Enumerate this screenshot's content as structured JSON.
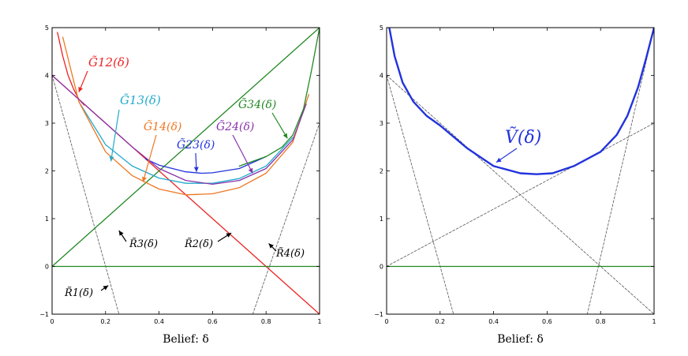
{
  "chart_data": [
    {
      "type": "line",
      "xlabel": "Belief: δ",
      "ylabel": "",
      "xlim": [
        0,
        1
      ],
      "ylim": [
        -1,
        5
      ],
      "x_ticks": [
        "0",
        "0.2",
        "0.4",
        "0.6",
        "0.8",
        "1"
      ],
      "y_ticks": [
        "−1",
        "0",
        "1",
        "2",
        "3",
        "4",
        "5"
      ],
      "grid": false,
      "series": [
        {
          "name": "R̃1(δ)",
          "color": "#555555",
          "style": "dashed",
          "x": [
            0.0,
            0.25
          ],
          "y": [
            4.0,
            -1.0
          ]
        },
        {
          "name": "R̃2(δ)",
          "color": "#ee2222",
          "style": "solid",
          "x": [
            0.0,
            1.0
          ],
          "y": [
            4.0,
            -1.0
          ]
        },
        {
          "name": "R̃3(δ)",
          "color": "#228822",
          "style": "solid",
          "x": [
            0.0,
            1.0
          ],
          "y": [
            0.0,
            5.0
          ]
        },
        {
          "name": "R̃4(δ)",
          "color": "#555555",
          "style": "dashed",
          "x": [
            0.75,
            1.0
          ],
          "y": [
            -1.0,
            3.0
          ]
        },
        {
          "name": "",
          "color": "#228822",
          "style": "solid",
          "x": [
            0.0,
            1.0
          ],
          "y": [
            0.0,
            0.0
          ]
        },
        {
          "name": "G̃12(δ)",
          "color": "#ee2222",
          "x": [
            0.02,
            0.04,
            0.06,
            0.08,
            0.1,
            0.12
          ],
          "y": [
            4.9,
            4.4,
            4.0,
            3.72,
            3.5,
            3.38
          ]
        },
        {
          "name": "G̃13(δ)",
          "color": "#22aacc",
          "x": [
            0.1,
            0.2,
            0.3,
            0.4,
            0.5,
            0.6,
            0.7,
            0.8,
            0.9
          ],
          "y": [
            3.45,
            2.55,
            2.1,
            1.85,
            1.74,
            1.74,
            1.84,
            2.1,
            2.7
          ]
        },
        {
          "name": "G̃14(δ)",
          "color": "#ee7722",
          "x": [
            0.04,
            0.1,
            0.2,
            0.3,
            0.4,
            0.5,
            0.6,
            0.7,
            0.8,
            0.9,
            0.96
          ],
          "y": [
            4.8,
            3.45,
            2.4,
            1.9,
            1.62,
            1.5,
            1.52,
            1.65,
            1.95,
            2.6,
            3.6
          ]
        },
        {
          "name": "G̃23(δ)",
          "color": "#2233dd",
          "x": [
            0.35,
            0.4,
            0.5,
            0.56,
            0.6,
            0.7,
            0.8
          ],
          "y": [
            2.25,
            2.12,
            1.98,
            1.95,
            1.96,
            2.05,
            2.3
          ]
        },
        {
          "name": "G̃24(δ)",
          "color": "#8833aa",
          "x": [
            0.0,
            0.1,
            0.2,
            0.3,
            0.4,
            0.5,
            0.6,
            0.7,
            0.8,
            0.9,
            0.95
          ],
          "y": [
            4.0,
            3.5,
            3.0,
            2.5,
            2.05,
            1.8,
            1.72,
            1.8,
            2.05,
            2.65,
            3.4
          ]
        },
        {
          "name": "G̃34(δ)",
          "color": "#228822",
          "x": [
            0.7,
            0.8,
            0.86,
            0.9,
            0.94,
            0.97,
            1.0
          ],
          "y": [
            2.1,
            2.3,
            2.5,
            2.75,
            3.3,
            4.1,
            5.0
          ]
        }
      ],
      "annotations": [
        {
          "text": "G̃12(δ)",
          "color": "#ee2222",
          "point": [
            0.1,
            3.65
          ]
        },
        {
          "text": "G̃13(δ)",
          "color": "#22aacc",
          "point": [
            0.22,
            2.2
          ]
        },
        {
          "text": "G̃14(δ)",
          "color": "#ee7722",
          "point": [
            0.34,
            1.77
          ]
        },
        {
          "text": "G̃23(δ)",
          "color": "#2233dd",
          "point": [
            0.54,
            1.98
          ]
        },
        {
          "text": "G̃24(δ)",
          "color": "#8833aa",
          "point": [
            0.75,
            1.95
          ]
        },
        {
          "text": "G̃34(δ)",
          "color": "#228822",
          "point": [
            0.88,
            2.68
          ]
        },
        {
          "text": "R̃1(δ)",
          "color": "#000000",
          "point": [
            0.21,
            -0.4
          ]
        },
        {
          "text": "R̃2(δ)",
          "color": "#000000",
          "point": [
            0.67,
            0.7
          ]
        },
        {
          "text": "R̃3(δ)",
          "color": "#000000",
          "point": [
            0.25,
            0.75
          ]
        },
        {
          "text": "R̃4(δ)",
          "color": "#000000",
          "point": [
            0.81,
            0.48
          ]
        }
      ]
    },
    {
      "type": "line",
      "xlabel": "Belief: δ",
      "ylabel": "",
      "xlim": [
        0,
        1
      ],
      "ylim": [
        -1,
        5
      ],
      "x_ticks": [
        "0",
        "0.2",
        "0.4",
        "0.6",
        "0.8",
        "1"
      ],
      "y_ticks": [
        "−1",
        "0",
        "1",
        "2",
        "3",
        "4",
        "5"
      ],
      "grid": false,
      "series": [
        {
          "name": "",
          "color": "#555555",
          "style": "dashed",
          "x": [
            0.0,
            0.25
          ],
          "y": [
            4.0,
            -1.0
          ]
        },
        {
          "name": "",
          "color": "#555555",
          "style": "dashed",
          "x": [
            0.0,
            1.0
          ],
          "y": [
            4.0,
            -1.0
          ]
        },
        {
          "name": "",
          "color": "#555555",
          "style": "dashed",
          "x": [
            0.0,
            1.0
          ],
          "y": [
            0.0,
            3.0
          ]
        },
        {
          "name": "",
          "color": "#555555",
          "style": "dashed",
          "x": [
            0.75,
            1.0
          ],
          "y": [
            -1.0,
            5.0
          ]
        },
        {
          "name": "",
          "color": "#228822",
          "style": "solid",
          "x": [
            0.0,
            1.0
          ],
          "y": [
            0.0,
            0.0
          ]
        },
        {
          "name": "Ṽ(δ)",
          "color": "#2233dd",
          "style": "bold",
          "x": [
            0.01,
            0.03,
            0.06,
            0.1,
            0.15,
            0.2,
            0.3,
            0.4,
            0.5,
            0.56,
            0.62,
            0.7,
            0.8,
            0.86,
            0.9,
            0.94,
            0.97,
            1.0
          ],
          "y": [
            5.0,
            4.4,
            3.85,
            3.45,
            3.15,
            2.95,
            2.48,
            2.1,
            1.95,
            1.93,
            1.95,
            2.1,
            2.4,
            2.75,
            3.15,
            3.75,
            4.35,
            5.0
          ]
        }
      ],
      "annotations": [
        {
          "text": "Ṽ(δ)",
          "color": "#2233dd",
          "point": [
            0.41,
            2.18
          ]
        }
      ]
    }
  ]
}
